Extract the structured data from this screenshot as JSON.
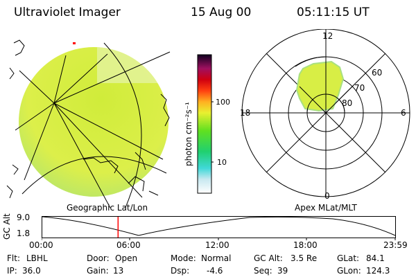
{
  "header": {
    "instrument": "Ultraviolet Imager",
    "date": "15 Aug 00",
    "time": "05:11:15 UT"
  },
  "colorbar": {
    "unit": "photon cm⁻²s⁻¹",
    "ticks": [
      "100",
      "10"
    ]
  },
  "polar_plot": {
    "mlt_labels": [
      "12",
      "18",
      "6",
      "0"
    ],
    "lat_labels": [
      "60",
      "70",
      "80"
    ]
  },
  "panel_labels": {
    "left": "Geographic Lat/Lon",
    "right": "Apex MLat/MLT"
  },
  "altitude_strip": {
    "axis_label": "GC Alt",
    "y_ticks": [
      "9.0",
      "1.8"
    ],
    "x_ticks": [
      "00:00",
      "06:00",
      "12:00",
      "18:00",
      "23:59"
    ],
    "current_time_fraction": 0.2162
  },
  "info": {
    "flt_label": "Flt:",
    "flt_value": "LBHL",
    "ip_label": "IP:",
    "ip_value": "36.0",
    "door_label": "Door:",
    "door_value": "Open",
    "gain_label": "Gain:",
    "gain_value": "13",
    "mode_label": "Mode:",
    "mode_value": "Normal",
    "dsp_label": "Dsp:",
    "dsp_value": "-4.6",
    "gcalt_label": "GC Alt:",
    "gcalt_value": "3.5 Re",
    "seq_label": "Seq:",
    "seq_value": "39",
    "glat_label": "GLat:",
    "glat_value": "84.1",
    "glon_label": "GLon:",
    "glon_value": "124.3"
  },
  "colors": {
    "disk_fill": "#d6ee3c",
    "auroral_oval": "#d8ee45",
    "time_marker": "#ff0000"
  }
}
